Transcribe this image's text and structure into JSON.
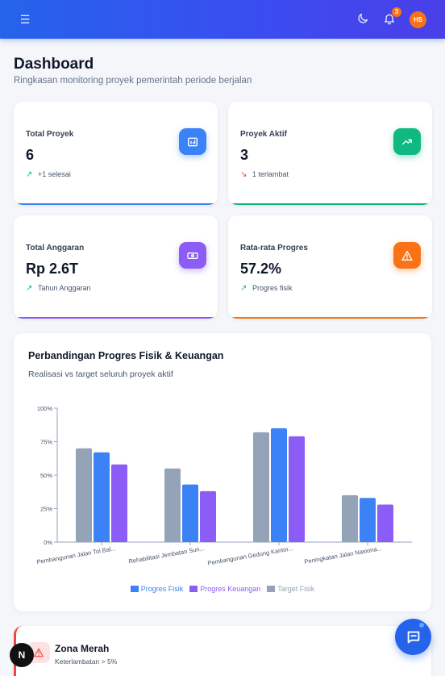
{
  "topbar": {
    "menu_icon": "menu-icon",
    "notification_count": "3",
    "avatar_initials": "HS"
  },
  "header": {
    "title": "Dashboard",
    "subtitle": "Ringkasan monitoring proyek pemerintah periode berjalan"
  },
  "stats": [
    {
      "label": "Total Proyek",
      "value": "6",
      "trend": "+1 selesai",
      "trend_dir": "up",
      "icon": "chart-board-icon",
      "color": "#3b82f6"
    },
    {
      "label": "Proyek Aktif",
      "value": "3",
      "trend": "1 terlambat",
      "trend_dir": "down",
      "icon": "trending-up-icon",
      "color": "#10b981"
    },
    {
      "label": "Total Anggaran",
      "value": "Rp 2.6T",
      "trend": "Tahun Anggaran",
      "trend_dir": "up",
      "icon": "banknote-icon",
      "color": "#8b5cf6"
    },
    {
      "label": "Rata-rata Progres",
      "value": "57.2%",
      "trend": "Progres fisik",
      "trend_dir": "up",
      "icon": "warning-icon",
      "color": "#f97316"
    }
  ],
  "chart_section": {
    "title": "Perbandingan Progres Fisik & Keuangan",
    "subtitle": "Realisasi vs target seluruh proyek aktif"
  },
  "chart_data": {
    "type": "bar",
    "categories": [
      "Pembangunan Jalan Tol Bal...",
      "Rehabilitasi Jembatan Sun...",
      "Pembangunan Gedung Kantor...",
      "Peningkatan Jalan Nasiona..."
    ],
    "series": [
      {
        "name": "Target Fisik",
        "values": [
          70,
          55,
          82,
          35
        ],
        "color": "#94a3b8"
      },
      {
        "name": "Progres Fisik",
        "values": [
          67,
          43,
          85,
          33
        ],
        "color": "#3b82f6"
      },
      {
        "name": "Progres Keuangan",
        "values": [
          58,
          38,
          79,
          28
        ],
        "color": "#8b5cf6"
      }
    ],
    "legend_order": [
      "Progres Fisik",
      "Progres Keuangan",
      "Target Fisik"
    ],
    "yticks": [
      "0%",
      "25%",
      "50%",
      "75%",
      "100%"
    ],
    "ylim": [
      0,
      100
    ],
    "legend_position": "bottom",
    "grid": false
  },
  "alert": {
    "title": "Zona Merah",
    "subtitle": "Keterlambatan > 5%"
  },
  "next_badge": "N"
}
